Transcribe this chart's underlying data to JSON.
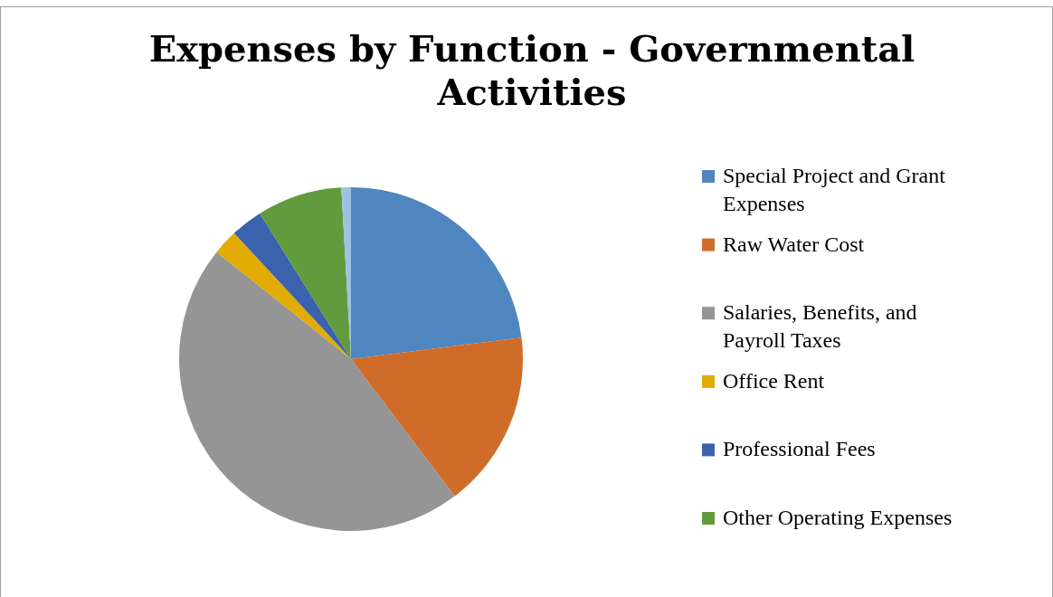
{
  "chart_data": {
    "type": "pie",
    "title": "Expenses by Function - Governmental Activities",
    "categories": [
      "Special Project and Grant Expenses",
      "Raw Water Cost",
      "Salaries, Benefits, and Payroll Taxes",
      "Office Rent",
      "Professional Fees",
      "Other Operating Expenses",
      null
    ],
    "values": [
      23,
      16.7,
      46,
      2.4,
      3,
      8,
      0.9
    ],
    "colors": [
      "#4f86bf",
      "#d06c2a",
      "#959595",
      "#e2ac04",
      "#3b62ad",
      "#629b3e",
      "#9ec1e6"
    ],
    "legend": "right"
  }
}
